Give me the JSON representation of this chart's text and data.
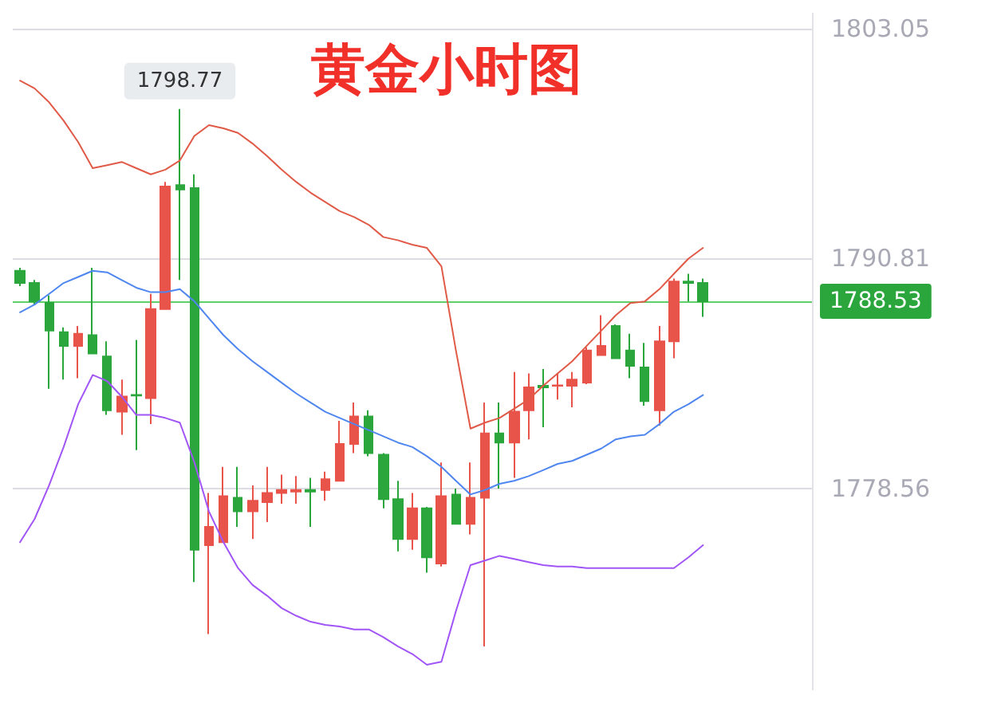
{
  "chart_data": {
    "type": "candlestick",
    "title": "黄金小时图",
    "categories": [
      null,
      null,
      null,
      null,
      null,
      null,
      null,
      null,
      null,
      null,
      null,
      null,
      null,
      null,
      null,
      null,
      null,
      null,
      null,
      null,
      null,
      null,
      null,
      null,
      null,
      null,
      null,
      null,
      null,
      null,
      null,
      null,
      null,
      null,
      null,
      null,
      null,
      null,
      null,
      null,
      null,
      null,
      null,
      null,
      null,
      null,
      null,
      null
    ],
    "ohlc": [
      [
        1790.15,
        1790.31,
        1789.33,
        1789.5
      ],
      [
        1789.5,
        1789.66,
        1788.35,
        1788.52
      ],
      [
        1788.44,
        1788.84,
        1783.86,
        1786.96
      ],
      [
        1786.88,
        1787.13,
        1784.35,
        1786.15
      ],
      [
        1786.15,
        1787.21,
        1784.43,
        1786.8
      ],
      [
        1786.72,
        1790.31,
        1785.74,
        1785.74
      ],
      [
        1785.58,
        1786.39,
        1782.47,
        1782.72
      ],
      [
        1782.64,
        1784.35,
        1781.41,
        1783.45
      ],
      [
        1783.54,
        1786.47,
        1780.59,
        1783.5
      ],
      [
        1783.37,
        1788.92,
        1781.98,
        1788.11
      ],
      [
        1788.11,
        1794.89,
        1788.11,
        1794.64
      ],
      [
        1794.72,
        1798.77,
        1789.66,
        1794.48
      ],
      [
        1794.56,
        1795.29,
        1773.57,
        1775.29
      ],
      [
        1775.53,
        1778.31,
        1770.79,
        1776.51
      ],
      [
        1775.69,
        1779.7,
        1775.69,
        1778.14
      ],
      [
        1778.06,
        1779.7,
        1776.51,
        1777.33
      ],
      [
        1777.33,
        1778.72,
        1775.86,
        1777.9
      ],
      [
        1777.82,
        1779.7,
        1776.76,
        1778.31
      ],
      [
        1778.31,
        1779.29,
        1777.74,
        1778.47
      ],
      [
        1778.39,
        1779.21,
        1777.74,
        1778.47
      ],
      [
        1778.47,
        1779.12,
        1776.51,
        1778.39
      ],
      [
        1778.47,
        1779.45,
        1777.9,
        1779.04
      ],
      [
        1778.96,
        1782.15,
        1778.96,
        1780.92
      ],
      [
        1780.92,
        1783.13,
        1780.43,
        1782.39
      ],
      [
        1782.39,
        1782.72,
        1780.27,
        1780.43
      ],
      [
        1780.35,
        1780.43,
        1777.49,
        1777.98
      ],
      [
        1777.98,
        1778.96,
        1775.2,
        1775.86
      ],
      [
        1775.86,
        1778.31,
        1775.29,
        1777.49
      ],
      [
        1777.49,
        1777.57,
        1774.06,
        1774.88
      ],
      [
        1774.55,
        1779.94,
        1774.39,
        1778.14
      ],
      [
        1778.23,
        1778.55,
        1776.67,
        1776.67
      ],
      [
        1776.67,
        1779.94,
        1776.1,
        1778.06
      ],
      [
        1778.06,
        1783.13,
        1770.14,
        1781.49
      ],
      [
        1781.49,
        1783.13,
        1778.55,
        1781.0
      ],
      [
        1781.0,
        1784.76,
        1779.12,
        1782.64
      ],
      [
        1782.72,
        1784.68,
        1781.17,
        1783.94
      ],
      [
        1784.02,
        1784.92,
        1781.82,
        1783.94
      ],
      [
        1784.02,
        1784.68,
        1783.29,
        1784.05
      ],
      [
        1784.02,
        1784.76,
        1782.88,
        1784.35
      ],
      [
        1784.19,
        1786.07,
        1784.11,
        1785.9
      ],
      [
        1785.66,
        1787.78,
        1785.66,
        1786.15
      ],
      [
        1787.21,
        1787.29,
        1785.49,
        1785.49
      ],
      [
        1785.9,
        1786.8,
        1784.43,
        1785.09
      ],
      [
        1785.0,
        1786.31,
        1782.96,
        1783.21
      ],
      [
        1782.72,
        1787.21,
        1781.9,
        1786.39
      ],
      [
        1786.39,
        1789.74,
        1785.49,
        1789.58
      ],
      [
        1789.58,
        1789.99,
        1788.52,
        1789.5
      ],
      [
        1789.5,
        1789.74,
        1787.7,
        1788.53
      ]
    ],
    "colors": [
      "#2aa63c",
      "#2aa63c",
      "#2aa63c",
      "#2aa63c",
      "#e8534a",
      "#2aa63c",
      "#2aa63c",
      "#e8534a",
      "#2aa63c",
      "#e8534a",
      "#e8534a",
      "#2aa63c",
      "#2aa63c",
      "#e8534a",
      "#e8534a",
      "#2aa63c",
      "#e8534a",
      "#e8534a",
      "#e8534a",
      "#e8534a",
      "#2aa63c",
      "#e8534a",
      "#e8534a",
      "#e8534a",
      "#2aa63c",
      "#2aa63c",
      "#2aa63c",
      "#e8534a",
      "#2aa63c",
      "#e8534a",
      "#2aa63c",
      "#e8534a",
      "#e8534a",
      "#2aa63c",
      "#e8534a",
      "#e8534a",
      "#2aa63c",
      "#e8534a",
      "#e8534a",
      "#e8534a",
      "#e8534a",
      "#2aa63c",
      "#2aa63c",
      "#2aa63c",
      "#e8534a",
      "#e8534a",
      "#2aa63c",
      "#2aa63c"
    ],
    "series": [
      {
        "type": "line",
        "color": "#e05a47",
        "values": [
          1800.28,
          1799.87,
          1799.13,
          1798.15,
          1797.01,
          1795.62,
          1795.78,
          1795.95,
          1795.62,
          1795.29,
          1795.54,
          1796.03,
          1797.34,
          1797.91,
          1797.74,
          1797.5,
          1796.93,
          1796.27,
          1795.54,
          1794.89,
          1794.31,
          1793.82,
          1793.33,
          1793.01,
          1792.6,
          1791.95,
          1791.78,
          1791.54,
          1791.37,
          1790.39,
          1785.9,
          1781.74,
          1782.06,
          1782.31,
          1782.8,
          1783.29,
          1784.02,
          1784.68,
          1785.33,
          1786.15,
          1786.96,
          1787.78,
          1788.43,
          1788.52,
          1789.17,
          1789.99,
          1790.8,
          1791.37
        ]
      },
      {
        "type": "line",
        "color": "#4f86f0",
        "values": [
          1787.94,
          1788.35,
          1788.92,
          1789.5,
          1789.82,
          1790.15,
          1790.07,
          1789.66,
          1789.25,
          1789.01,
          1789.01,
          1789.17,
          1788.52,
          1787.62,
          1786.72,
          1785.98,
          1785.33,
          1784.76,
          1784.19,
          1783.62,
          1783.13,
          1782.64,
          1782.31,
          1781.98,
          1781.66,
          1781.33,
          1781.0,
          1780.76,
          1780.27,
          1779.7,
          1778.96,
          1778.23,
          1778.47,
          1778.8,
          1778.96,
          1779.21,
          1779.53,
          1779.86,
          1780.02,
          1780.35,
          1780.68,
          1781.17,
          1781.33,
          1781.41,
          1781.98,
          1782.64,
          1783.04,
          1783.53
        ]
      },
      {
        "type": "line",
        "color": "#a155f7",
        "values": [
          1775.69,
          1776.92,
          1778.72,
          1780.76,
          1783.04,
          1784.6,
          1784.27,
          1783.45,
          1782.47,
          1782.47,
          1782.31,
          1782.06,
          1779.94,
          1777.33,
          1775.69,
          1774.31,
          1773.41,
          1772.84,
          1772.18,
          1771.77,
          1771.45,
          1771.28,
          1771.2,
          1771.04,
          1771.04,
          1770.63,
          1770.14,
          1769.73,
          1769.16,
          1769.32,
          1772.02,
          1774.47,
          1774.71,
          1774.96,
          1774.8,
          1774.63,
          1774.47,
          1774.39,
          1774.39,
          1774.31,
          1774.31,
          1774.31,
          1774.31,
          1774.31,
          1774.31,
          1774.31,
          1774.88,
          1775.53
        ]
      }
    ],
    "ylim": [
      1767.8,
      1803.9
    ],
    "yticks": [
      1778.56,
      1790.81,
      1803.05
    ],
    "ref_lines": [
      {
        "axis": "y",
        "value": 1788.53,
        "label": "1788.53",
        "color": "#5fcf6a"
      }
    ],
    "annotations": [
      {
        "text": "1798.77",
        "y": 1798.77
      }
    ],
    "grid": "y",
    "marker": "none",
    "line_style": "solid",
    "tick_labels": "y"
  }
}
